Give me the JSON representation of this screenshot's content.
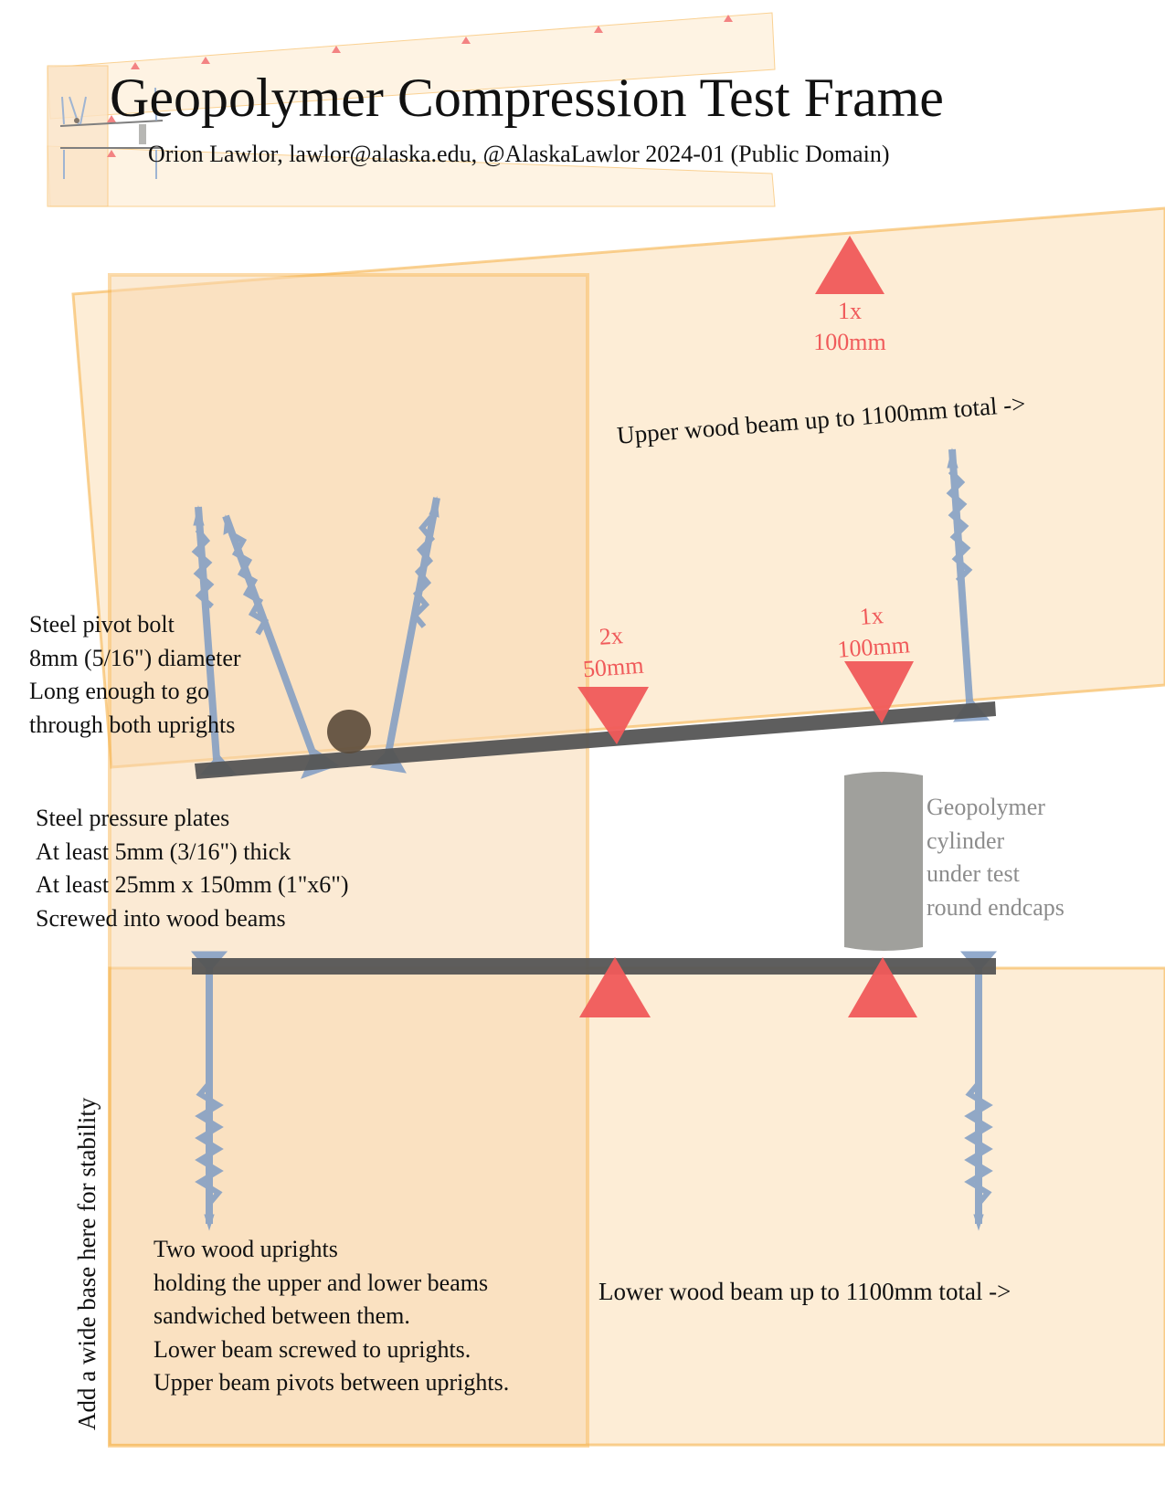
{
  "title": "Geopolymer Compression Test Frame",
  "subtitle": "Orion Lawlor, lawlor@alaska.edu, @AlaskaLawlor   2024-01  (Public Domain)",
  "annotations": {
    "upper_beam": "Upper wood beam up to 1100mm total ->",
    "lower_beam": "Lower wood beam up to 1100mm total ->",
    "pivot_bolt": [
      "Steel pivot bolt",
      "8mm (5/16\") diameter",
      "Long enough to go",
      "through both uprights"
    ],
    "pressure_plates": [
      "Steel pressure plates",
      "At least 5mm (3/16\") thick",
      "At least 25mm x 150mm (1\"x6\")",
      "Screwed into wood beams"
    ],
    "uprights": [
      "Two wood uprights",
      "holding the upper and lower beams",
      "sandwiched between them.",
      "Lower beam screwed to uprights.",
      "Upper beam pivots between uprights."
    ],
    "cylinder": [
      "Geopolymer",
      "cylinder",
      "under test",
      "round endcaps"
    ],
    "base": "Add a wide base here for stability"
  },
  "loads": {
    "top": {
      "count": "1x",
      "distance": "100mm"
    },
    "middle": {
      "count": "2x",
      "distance": "50mm"
    },
    "right": {
      "count": "1x",
      "distance": "100mm"
    }
  },
  "colors": {
    "wood_fill": "#fdebd0",
    "wood_edge": "#f7b24a",
    "steel_plate": "#555555",
    "screw": "#7f9cc4",
    "load_arrow": "#f05a5a",
    "pivot_bolt": "#5a4a3a",
    "cylinder": "#a0a09c",
    "cylinder_label": "#8c8c8c"
  }
}
